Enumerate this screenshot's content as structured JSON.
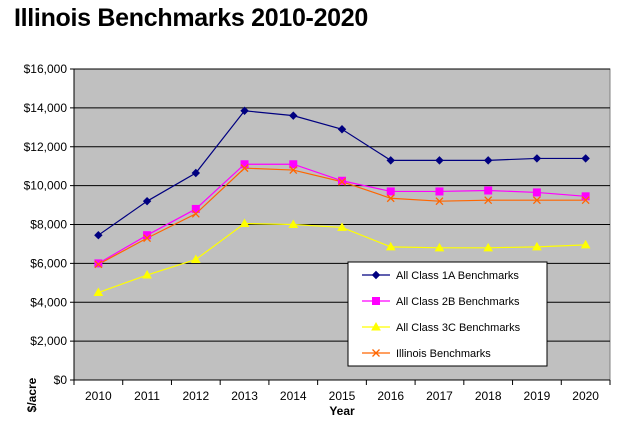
{
  "chart_data": {
    "type": "line",
    "title": "Illinois Benchmarks 2010-2020",
    "xlabel": "Year",
    "ylabel": "$/acre",
    "categories": [
      "2010",
      "2011",
      "2012",
      "2013",
      "2014",
      "2015",
      "2016",
      "2017",
      "2018",
      "2019",
      "2020"
    ],
    "ylim": [
      0,
      16000
    ],
    "yticks": [
      0,
      2000,
      4000,
      6000,
      8000,
      10000,
      12000,
      14000,
      16000
    ],
    "ytick_labels": [
      "$0",
      "$2,000",
      "$4,000",
      "$6,000",
      "$8,000",
      "$10,000",
      "$12,000",
      "$14,000",
      "$16,000"
    ],
    "grid": true,
    "legend_position": "lower-right",
    "plot_background": "#C0C0C0",
    "series": [
      {
        "name": "All Class 1A Benchmarks",
        "color": "#000080",
        "marker": "diamond",
        "values": [
          7450,
          9200,
          10650,
          13850,
          13600,
          12900,
          11300,
          11300,
          11300,
          11400,
          11400
        ]
      },
      {
        "name": "All Class 2B Benchmarks",
        "color": "#FF00FF",
        "marker": "square",
        "values": [
          6000,
          7450,
          8800,
          11100,
          11100,
          10250,
          9700,
          9700,
          9750,
          9650,
          9450
        ]
      },
      {
        "name": "All Class 3C Benchmarks",
        "color": "#FFFF00",
        "marker": "triangle",
        "values": [
          4500,
          5400,
          6200,
          8050,
          8000,
          7850,
          6850,
          6800,
          6800,
          6850,
          6950
        ]
      },
      {
        "name": "Illinois Benchmarks",
        "color": "#FF6600",
        "marker": "x",
        "values": [
          5950,
          7300,
          8550,
          10900,
          10800,
          10200,
          9350,
          9200,
          9250,
          9250,
          9250
        ]
      }
    ]
  }
}
